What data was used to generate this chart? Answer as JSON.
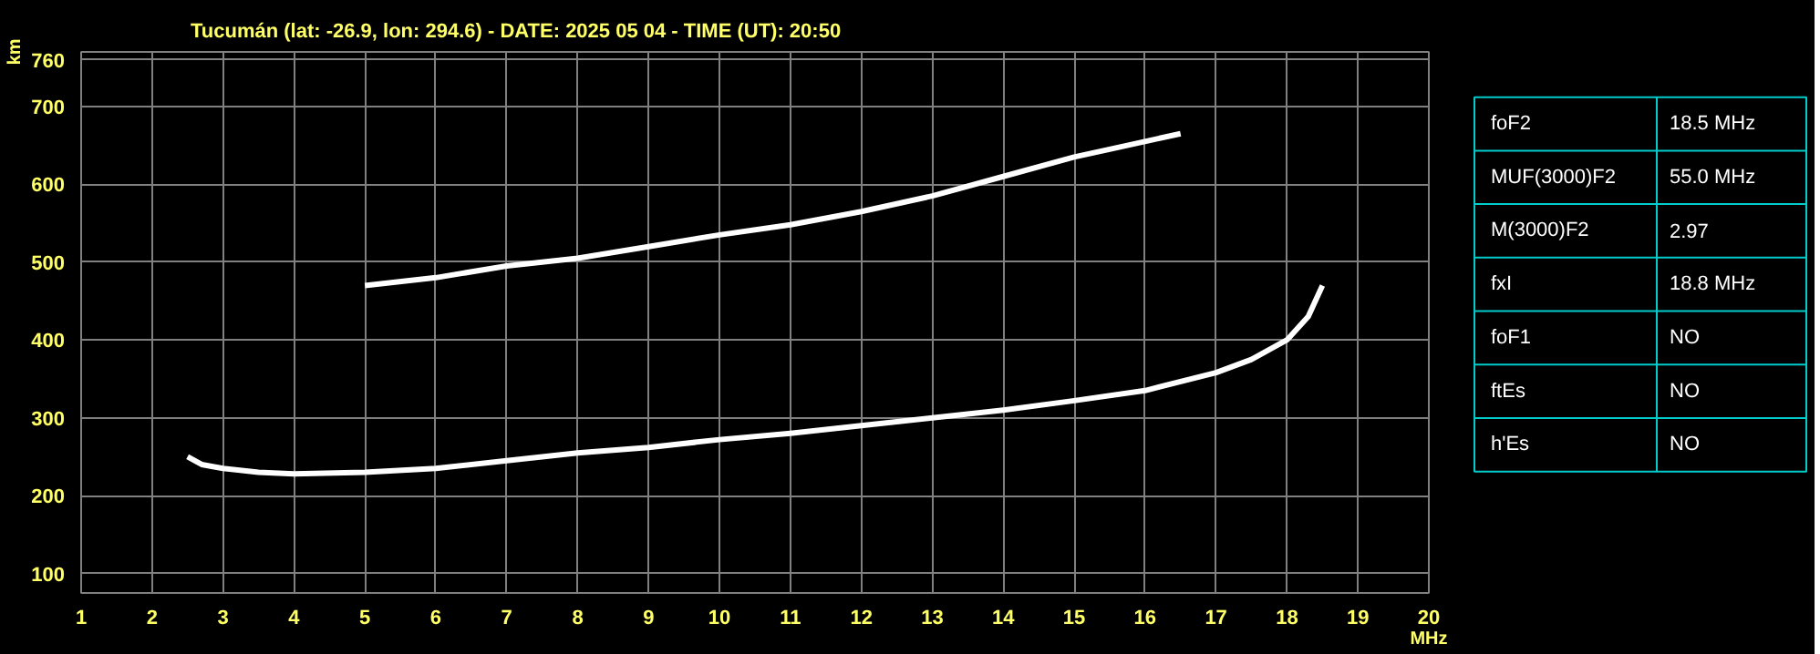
{
  "chart_data": [
    {
      "type": "line",
      "title": "Tucumán (lat: -26.9, lon: 294.6) - DATE: 2025 05 04 - TIME (UT): 20:50",
      "xlabel": "MHz",
      "ylabel": "km",
      "xlim": [
        1,
        20
      ],
      "ylim": [
        75,
        770
      ],
      "xticks": [
        1,
        2,
        3,
        4,
        5,
        6,
        7,
        8,
        9,
        10,
        11,
        12,
        13,
        14,
        15,
        16,
        17,
        18,
        19,
        20
      ],
      "yticks": [
        100,
        200,
        300,
        400,
        500,
        600,
        700,
        760
      ],
      "grid": true,
      "marker": "none",
      "line_style": "solid",
      "series": [
        {
          "color": "#ffffff",
          "x": [
            2.5,
            2.7,
            3,
            3.5,
            4,
            5,
            6,
            7,
            8,
            9,
            10,
            11,
            12,
            13,
            14,
            15,
            16,
            17,
            17.5,
            18,
            18.3,
            18.5
          ],
          "values": [
            250,
            240,
            235,
            230,
            228,
            230,
            235,
            245,
            255,
            262,
            272,
            280,
            290,
            300,
            310,
            322,
            335,
            358,
            375,
            400,
            430,
            470
          ]
        },
        {
          "color": "#ffffff",
          "x": [
            5,
            6,
            7,
            8,
            9,
            10,
            11,
            12,
            13,
            14,
            15,
            15.5,
            16.5
          ],
          "values": [
            470,
            480,
            495,
            505,
            520,
            535,
            548,
            565,
            585,
            610,
            635,
            645,
            665
          ]
        }
      ]
    },
    {
      "type": "other",
      "categories": [
        "foF2",
        "MUF(3000)F2",
        "M(3000)F2",
        "fxI",
        "foF1",
        "ftEs",
        "h'Es"
      ],
      "value_labels": [
        "18.5 MHz",
        "55.0 MHz",
        "2.97",
        "18.8 MHz",
        "NO",
        "NO",
        "NO"
      ]
    }
  ]
}
